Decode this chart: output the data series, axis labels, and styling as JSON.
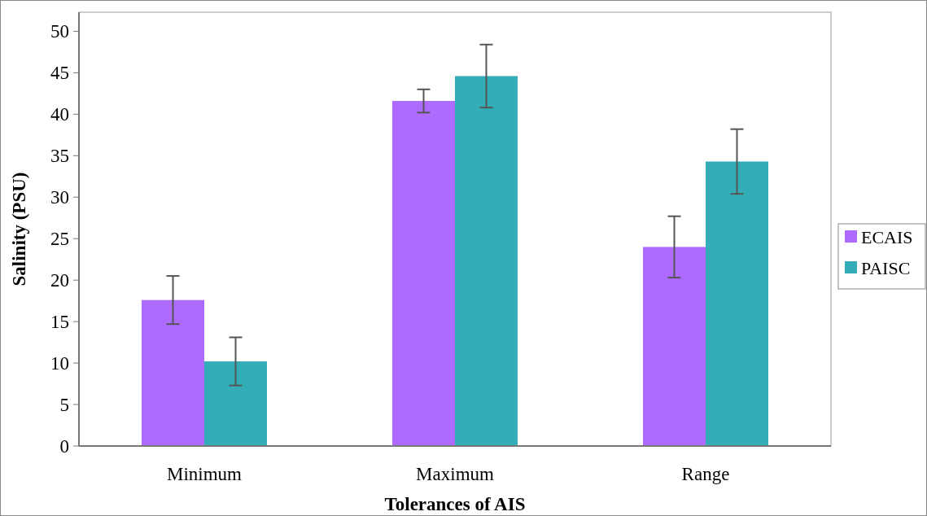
{
  "chart_data": {
    "type": "bar",
    "xlabel": "Tolerances of AIS",
    "ylabel": "Salinity (PSU)",
    "categories": [
      "Minimum",
      "Maximum",
      "Range"
    ],
    "series": [
      {
        "name": "ECAIS",
        "color": "#ad6bff",
        "values": [
          17.6,
          41.6,
          24.0
        ],
        "errors": [
          2.9,
          1.4,
          3.7
        ]
      },
      {
        "name": "PAISC",
        "color": "#33aeb8",
        "values": [
          10.2,
          44.6,
          34.3
        ],
        "errors": [
          2.9,
          3.8,
          3.9
        ]
      }
    ],
    "ylim": [
      0,
      52.3
    ],
    "yticks": [
      0,
      5,
      10,
      15,
      20,
      25,
      30,
      35,
      40,
      45,
      50
    ],
    "grid": false,
    "legend": "right"
  }
}
